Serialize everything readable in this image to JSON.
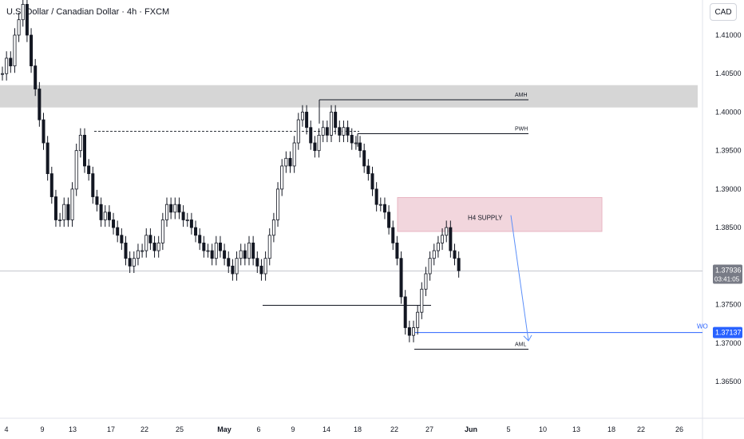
{
  "header": {
    "title": "U.S. Dollar / Canadian Dollar · 4h · FXCM"
  },
  "scale": {
    "currency_button": "CAD"
  },
  "chart_data": {
    "type": "candlestick",
    "symbol": "USDCAD",
    "timeframe": "4h",
    "y_axis": {
      "ticks": [
        1.41,
        1.405,
        1.4,
        1.395,
        1.39,
        1.385,
        1.375,
        1.37,
        1.365
      ],
      "tick_labels": [
        "1.41000",
        "1.40500",
        "1.40000",
        "1.39500",
        "1.39000",
        "1.38500",
        "1.37500",
        "1.37000",
        "1.36500"
      ],
      "range": [
        1.3615,
        1.4155
      ]
    },
    "x_axis": {
      "ticks": [
        "4",
        "9",
        "13",
        "17",
        "22",
        "25",
        "May",
        "6",
        "9",
        "14",
        "18",
        "22",
        "27",
        "Jun",
        "5",
        "10",
        "13",
        "18",
        "22",
        "26"
      ]
    },
    "current_price": {
      "price": 1.37936,
      "label": "1.37936",
      "countdown": "03:41:05",
      "color": "#787b86"
    },
    "levels": [
      {
        "name": "AMH",
        "price": 1.4016,
        "style": "solid",
        "color": "#131722"
      },
      {
        "name": "PWH",
        "price": 1.3972,
        "style": "solid",
        "color": "#131722"
      },
      {
        "name": "AML",
        "price": 1.3692,
        "style": "solid",
        "color": "#131722"
      },
      {
        "name": "WO",
        "price": 1.37137,
        "label": "1.37137",
        "style": "solid",
        "color": "#2962ff"
      }
    ],
    "zones": [
      {
        "label": "H4 SUPPLY",
        "price_top": 1.3889,
        "price_bottom": 1.3845,
        "color": "#f2d6dd"
      },
      {
        "label": "",
        "price_top": 1.4035,
        "price_bottom": 1.4006,
        "color": "#d6d6d6"
      }
    ],
    "projection": {
      "from_price": 1.3866,
      "to_price": 1.3703,
      "color": "#5b8ff9"
    },
    "candles": [
      1.405,
      1.407,
      1.406,
      1.41,
      1.412,
      1.414,
      1.41,
      1.406,
      1.403,
      1.399,
      1.396,
      1.392,
      1.389,
      1.386,
      1.386,
      1.388,
      1.386,
      1.39,
      1.395,
      1.397,
      1.393,
      1.392,
      1.389,
      1.388,
      1.386,
      1.387,
      1.386,
      1.385,
      1.384,
      1.383,
      1.381,
      1.38,
      1.381,
      1.382,
      1.382,
      1.384,
      1.383,
      1.382,
      1.383,
      1.386,
      1.388,
      1.387,
      1.388,
      1.387,
      1.386,
      1.386,
      1.385,
      1.384,
      1.383,
      1.382,
      1.382,
      1.381,
      1.383,
      1.382,
      1.381,
      1.38,
      1.379,
      1.381,
      1.382,
      1.381,
      1.383,
      1.381,
      1.38,
      1.379,
      1.381,
      1.384,
      1.386,
      1.39,
      1.393,
      1.394,
      1.393,
      1.396,
      1.399,
      1.4,
      1.398,
      1.396,
      1.395,
      1.397,
      1.398,
      1.397,
      1.4,
      1.398,
      1.397,
      1.398,
      1.397,
      1.396,
      1.396,
      1.395,
      1.393,
      1.392,
      1.39,
      1.388,
      1.388,
      1.387,
      1.385,
      1.383,
      1.381,
      1.376,
      1.372,
      1.371,
      1.372,
      1.374,
      1.377,
      1.379,
      1.381,
      1.382,
      1.383,
      1.384,
      1.385,
      1.382,
      1.381,
      1.3794
    ]
  }
}
